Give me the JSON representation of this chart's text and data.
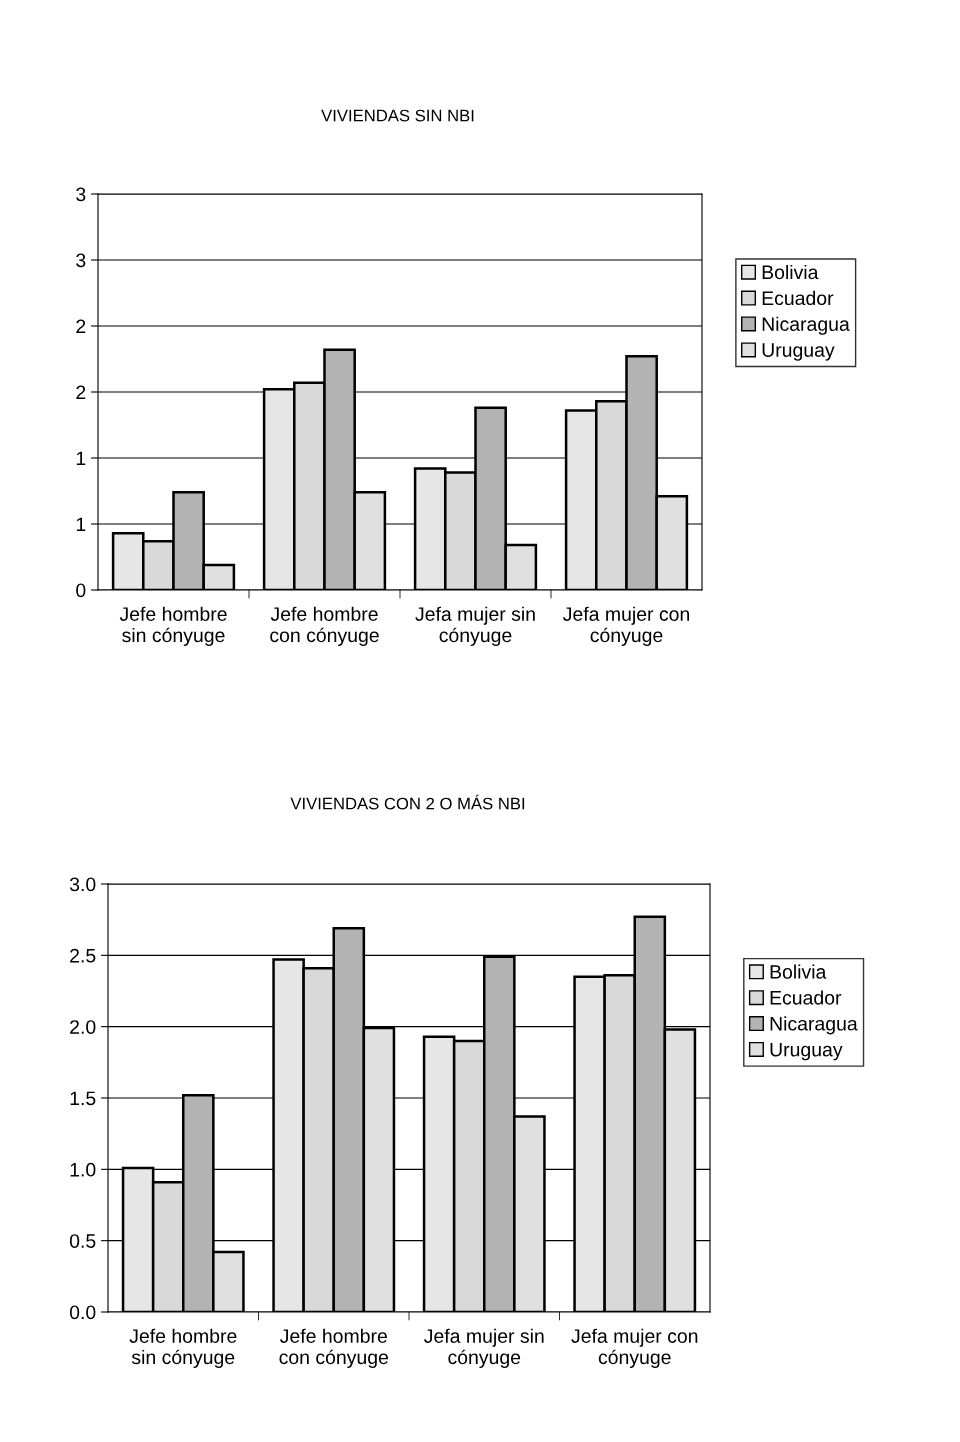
{
  "chart_data": [
    {
      "type": "bar",
      "title": "VIVIENDAS SIN NBI",
      "categories": [
        "Jefe hombre\nsin cónyuge",
        "Jefe hombre\ncon cónyuge",
        "Jefa mujer sin\ncónyuge",
        "Jefa mujer con\ncónyuge"
      ],
      "series": [
        {
          "name": "Bolivia",
          "color": "#e6e6e6",
          "values": [
            0.43,
            1.52,
            0.92,
            1.36
          ]
        },
        {
          "name": "Ecuador",
          "color": "#d9d9d9",
          "values": [
            0.37,
            1.57,
            0.89,
            1.43
          ]
        },
        {
          "name": "Nicaragua",
          "color": "#b3b3b3",
          "values": [
            0.74,
            1.82,
            1.38,
            1.77
          ]
        },
        {
          "name": "Uruguay",
          "color": "#e0e0e0",
          "values": [
            0.19,
            0.74,
            0.34,
            0.71
          ]
        }
      ],
      "ylim": [
        0,
        3
      ],
      "yticks": [
        0,
        {
          "value": 0.5,
          "label": "1"
        },
        1,
        {
          "value": 1.5,
          "label": "2"
        },
        2,
        {
          "value": 2.5,
          "label": "3"
        },
        3
      ],
      "grid": "y",
      "legend": "right"
    },
    {
      "type": "bar",
      "title": "VIVIENDAS CON 2 O MÁS NBI",
      "categories": [
        "Jefe hombre\nsin cónyuge",
        "Jefe hombre\ncon cónyuge",
        "Jefa mujer sin\ncónyuge",
        "Jefa mujer con\ncónyuge"
      ],
      "series": [
        {
          "name": "Bolivia",
          "color": "#e6e6e6",
          "values": [
            1.01,
            2.47,
            1.93,
            2.35
          ]
        },
        {
          "name": "Ecuador",
          "color": "#d9d9d9",
          "values": [
            0.91,
            2.41,
            1.9,
            2.36
          ]
        },
        {
          "name": "Nicaragua",
          "color": "#b3b3b3",
          "values": [
            1.52,
            2.69,
            2.49,
            2.77
          ]
        },
        {
          "name": "Uruguay",
          "color": "#e0e0e0",
          "values": [
            0.42,
            1.99,
            1.37,
            1.98
          ]
        }
      ],
      "ylim": [
        0,
        3
      ],
      "yticks": [
        {
          "value": 0,
          "label": "0.0"
        },
        {
          "value": 0.5,
          "label": "0.5"
        },
        {
          "value": 1,
          "label": "1.0"
        },
        {
          "value": 1.5,
          "label": "1.5"
        },
        {
          "value": 2,
          "label": "2.0"
        },
        {
          "value": 2.5,
          "label": "2.5"
        },
        {
          "value": 3,
          "label": "3.0"
        }
      ],
      "grid": "y",
      "legend": "right"
    }
  ]
}
